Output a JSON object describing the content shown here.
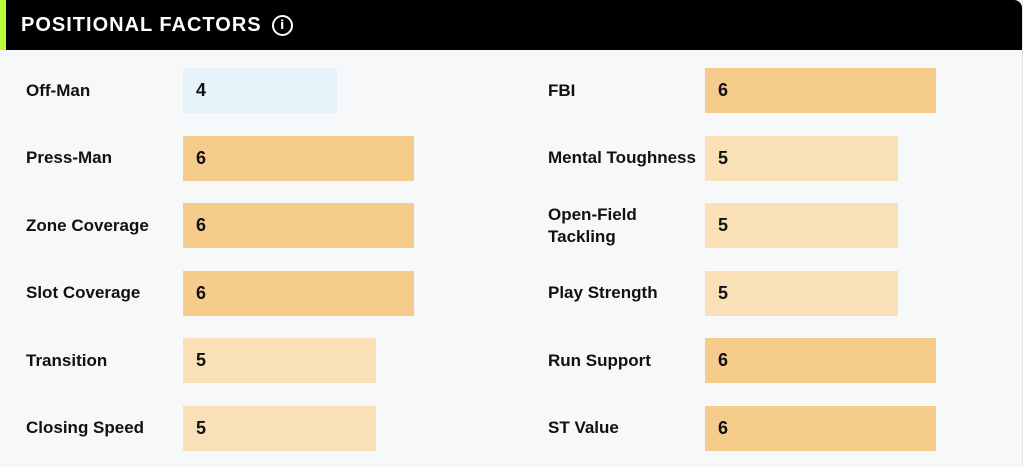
{
  "header": {
    "title": "POSITIONAL FACTORS",
    "info_icon": "info-circle-icon"
  },
  "colors": {
    "header_bg": "#000000",
    "accent": "#b6ff3b",
    "low": "#e6f3fb",
    "mid": "#f9e0b7",
    "high": "#f6cc8d"
  },
  "left_factors": [
    {
      "label": "Off-Man",
      "value": "4"
    },
    {
      "label": "Press-Man",
      "value": "6"
    },
    {
      "label": "Zone Coverage",
      "value": "6"
    },
    {
      "label": "Slot Coverage",
      "value": "6"
    },
    {
      "label": "Transition",
      "value": "5"
    },
    {
      "label": "Closing Speed",
      "value": "5"
    }
  ],
  "right_factors": [
    {
      "label": "FBI",
      "value": "6"
    },
    {
      "label": "Mental Toughness",
      "value": "5"
    },
    {
      "label": "Open-Field Tackling",
      "value": "5"
    },
    {
      "label": "Play Strength",
      "value": "5"
    },
    {
      "label": "Run Support",
      "value": "6"
    },
    {
      "label": "ST Value",
      "value": "6"
    }
  ]
}
